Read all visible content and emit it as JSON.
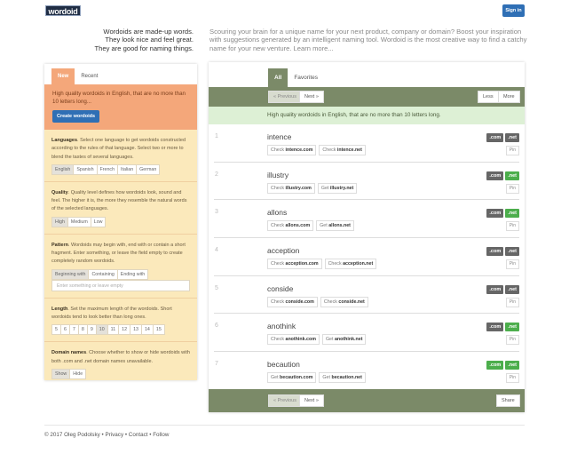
{
  "header": {
    "logo": "wordoid",
    "signin": "Sign in"
  },
  "tagline": [
    "Wordoids are made-up words.",
    "They look nice and feel great.",
    "They are good for naming things."
  ],
  "intro": "Scouring your brain for a unique name for your next product, company or domain? Boost your inspiration with suggestions generated by an intelligent naming tool. Wordoid is the most creative way to find a catchy name for your new venture. Learn more...",
  "left": {
    "tabs": [
      "New",
      "Recent"
    ],
    "summary": "High quality wordoids in English, that are no more than 10 letters long...",
    "create": "Create wordoids",
    "languages": {
      "title": "Languages",
      "text": ". Select one language to get wordoids constructed according to the rules of that language. Select two or more to blend the tastes of several languages.",
      "options": [
        "English",
        "Spanish",
        "French",
        "Italian",
        "German"
      ],
      "selected": "English"
    },
    "quality": {
      "title": "Quality",
      "text": ". Quality level defines how wordoids look, sound and feel. The higher it is, the more they resemble the natural words of the selected languages.",
      "options": [
        "High",
        "Medium",
        "Low"
      ],
      "selected": "High"
    },
    "pattern": {
      "title": "Pattern",
      "text": ". Wordoids may begin with, end with or contain a short fragment. Enter something, or leave the field empty to create completely random wordoids.",
      "options": [
        "Beginning with",
        "Containing",
        "Ending with"
      ],
      "selected": "Beginning with",
      "placeholder": "Enter something or leave empty"
    },
    "length": {
      "title": "Length",
      "text": ". Set the maximum length of the wordoids. Short wordoids tend to look better than long ones.",
      "options": [
        "5",
        "6",
        "7",
        "8",
        "9",
        "10",
        "11",
        "12",
        "13",
        "14",
        "15"
      ],
      "selected": "10"
    },
    "domains": {
      "title": "Domain names",
      "text": ". Choose whether to show or hide wordoids with both .com and .net domain names unavailable.",
      "options": [
        "Show",
        "Hide"
      ],
      "selected": "Show"
    }
  },
  "right": {
    "tabs": [
      "All",
      "Favorites"
    ],
    "prev": "« Previous",
    "next": "Next »",
    "less": "Less",
    "more": "More",
    "share": "Share",
    "info": "High quality wordoids in English, that are no more than 10 letters long.",
    "pin": "Pin",
    "colors": {
      "taken": "#666666",
      "available": "#4cae4c"
    },
    "rows": [
      {
        "n": "1",
        "word": "intence",
        "com": "taken",
        "net": "taken",
        "a1": "Check",
        "d1": "intence.com",
        "a2": "Check",
        "d2": "intence.net"
      },
      {
        "n": "2",
        "word": "illustry",
        "com": "taken",
        "net": "available",
        "a1": "Check",
        "d1": "illustry.com",
        "a2": "Get",
        "d2": "illustry.net"
      },
      {
        "n": "3",
        "word": "allons",
        "com": "taken",
        "net": "available",
        "a1": "Check",
        "d1": "allons.com",
        "a2": "Get",
        "d2": "allons.net"
      },
      {
        "n": "4",
        "word": "acception",
        "com": "taken",
        "net": "taken",
        "a1": "Check",
        "d1": "acception.com",
        "a2": "Check",
        "d2": "acception.net"
      },
      {
        "n": "5",
        "word": "conside",
        "com": "taken",
        "net": "taken",
        "a1": "Check",
        "d1": "conside.com",
        "a2": "Check",
        "d2": "conside.net"
      },
      {
        "n": "6",
        "word": "anothink",
        "com": "taken",
        "net": "available",
        "a1": "Check",
        "d1": "anothink.com",
        "a2": "Get",
        "d2": "anothink.net"
      },
      {
        "n": "7",
        "word": "becaution",
        "com": "available",
        "net": "available",
        "a1": "Get",
        "d1": "becaution.com",
        "a2": "Get",
        "d2": "becaution.net"
      }
    ],
    "com_label": ".com",
    "net_label": ".net"
  },
  "footer": "© 2017 Oleg Podolsky  •  Privacy  •  Contact  •  Follow"
}
